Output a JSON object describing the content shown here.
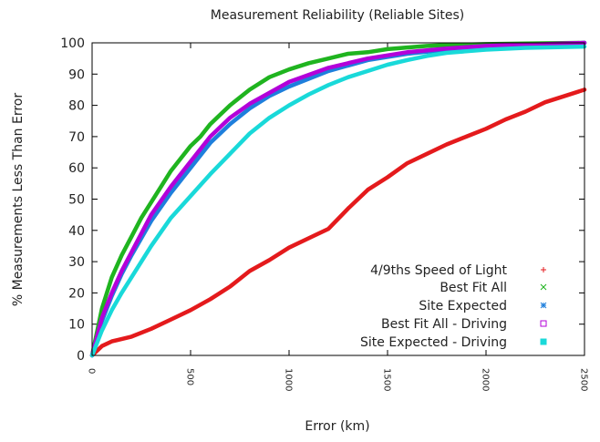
{
  "chart_data": {
    "type": "line",
    "title": "Measurement Reliability (Reliable Sites)",
    "xlabel": "Error (km)",
    "ylabel": "% Measurements Less Than Error",
    "xlim": [
      0,
      2500
    ],
    "ylim": [
      0,
      100
    ],
    "x_ticks": [
      0,
      500,
      1000,
      1500,
      2000,
      2500
    ],
    "y_ticks": [
      0,
      10,
      20,
      30,
      40,
      50,
      60,
      70,
      80,
      90,
      100
    ],
    "x_tick_labels": [
      "0",
      "500",
      "1000",
      "1500",
      "2000",
      "2500"
    ],
    "y_tick_labels": [
      "0",
      "10",
      "20",
      "30",
      "40",
      "50",
      "60",
      "70",
      "80",
      "90",
      "100"
    ],
    "grid": false,
    "legend_position": "bottom-right",
    "series": [
      {
        "name": "4/9ths Speed of Light",
        "color": "#e41a1c",
        "marker": "plus",
        "x": [
          0,
          50,
          100,
          200,
          300,
          400,
          500,
          600,
          700,
          800,
          900,
          1000,
          1100,
          1200,
          1300,
          1400,
          1500,
          1600,
          1700,
          1800,
          1900,
          2000,
          2100,
          2200,
          2300,
          2400,
          2500
        ],
        "y": [
          0,
          3,
          4.5,
          6,
          8.5,
          11.5,
          14.5,
          18,
          22,
          27,
          30.5,
          34.5,
          37.5,
          40.5,
          47,
          53,
          57,
          61.5,
          64.5,
          67.5,
          70,
          72.5,
          75.5,
          78,
          81,
          83,
          85
        ]
      },
      {
        "name": "Best Fit All",
        "color": "#1fb41f",
        "marker": "x",
        "x": [
          0,
          50,
          100,
          150,
          200,
          250,
          300,
          350,
          400,
          450,
          500,
          550,
          600,
          700,
          800,
          900,
          1000,
          1100,
          1200,
          1300,
          1400,
          1500,
          1600,
          1700,
          1800,
          2000,
          2200,
          2500
        ],
        "y": [
          0,
          15,
          25,
          32,
          38,
          44,
          49,
          54,
          59,
          63,
          67,
          70,
          74,
          80,
          85,
          89,
          91.5,
          93.5,
          95,
          96.5,
          97,
          98,
          98.5,
          99,
          99.3,
          99.6,
          99.8,
          100
        ]
      },
      {
        "name": "Site Expected",
        "color": "#1e7fdc",
        "marker": "star",
        "x": [
          0,
          50,
          100,
          150,
          200,
          300,
          400,
          500,
          600,
          700,
          800,
          900,
          1000,
          1200,
          1400,
          1600,
          1800,
          2000,
          2300,
          2500
        ],
        "y": [
          0,
          11,
          19,
          26,
          32,
          43,
          52,
          60,
          68,
          74,
          79,
          83,
          86,
          91,
          94.5,
          96.5,
          97.8,
          98.8,
          99.5,
          100
        ]
      },
      {
        "name": "Best Fit All - Driving",
        "color": "#b300d9",
        "marker": "square",
        "x": [
          0,
          50,
          100,
          150,
          200,
          300,
          400,
          500,
          600,
          700,
          800,
          900,
          1000,
          1200,
          1400,
          1600,
          1800,
          2000,
          2300,
          2500
        ],
        "y": [
          0,
          12,
          20,
          27,
          33,
          45,
          54,
          62,
          70,
          76,
          80.5,
          84,
          87.5,
          92,
          95,
          97,
          98.2,
          99,
          99.6,
          100
        ]
      },
      {
        "name": "Site Expected - Driving",
        "color": "#19d9d9",
        "marker": "filled-square",
        "x": [
          0,
          50,
          100,
          150,
          200,
          300,
          400,
          500,
          600,
          700,
          800,
          900,
          1000,
          1100,
          1200,
          1300,
          1400,
          1500,
          1600,
          1700,
          1800,
          2000,
          2200,
          2500
        ],
        "y": [
          0,
          8,
          14.5,
          20,
          25,
          35,
          44,
          51,
          58,
          64.5,
          71,
          76,
          80,
          83.5,
          86.5,
          89,
          91,
          93,
          94.5,
          95.8,
          96.8,
          97.8,
          98.4,
          98.8
        ]
      }
    ]
  }
}
